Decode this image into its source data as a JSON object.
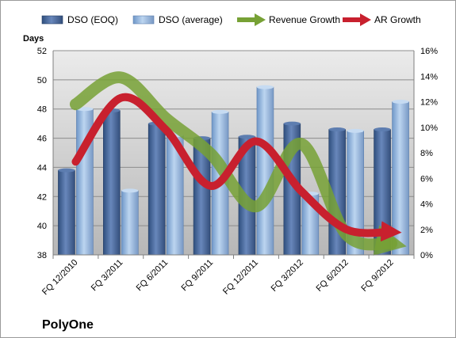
{
  "chart_data": {
    "type": "bar",
    "categories": [
      "FQ 12/2010",
      "FQ 3/2011",
      "FQ 6/2011",
      "FQ 9/2011",
      "FQ 12/2011",
      "FQ 3/2012",
      "FQ 6/2012",
      "FQ 9/2012"
    ],
    "ylabel": "Days",
    "ylim": [
      38,
      52
    ],
    "yticks": [
      38,
      40,
      42,
      44,
      46,
      48,
      50,
      52
    ],
    "y2lim": [
      0,
      16
    ],
    "y2ticks": [
      "0%",
      "2%",
      "4%",
      "6%",
      "8%",
      "10%",
      "12%",
      "14%",
      "16%"
    ],
    "legend_position": "top",
    "grid": true,
    "company": "PolyOne",
    "series": [
      {
        "name": "DSO (EOQ)",
        "kind": "bar",
        "axis": "left",
        "color": "#4f6fa3",
        "values": [
          43.8,
          47.9,
          47.0,
          46.0,
          46.1,
          47.0,
          46.6,
          46.6
        ]
      },
      {
        "name": "DSO (average)",
        "kind": "bar",
        "axis": "left",
        "color": "#9fbee3",
        "values": [
          48.0,
          42.4,
          46.2,
          47.8,
          49.5,
          42.2,
          46.5,
          48.5
        ]
      },
      {
        "name": "Revenue Growth",
        "kind": "line",
        "axis": "right",
        "color": "#77a135",
        "values": [
          11.8,
          13.9,
          10.7,
          7.9,
          3.8,
          8.7,
          1.6,
          0.9
        ]
      },
      {
        "name": "AR Growth",
        "kind": "line",
        "axis": "right",
        "color": "#c8202e",
        "values": [
          7.3,
          12.3,
          9.8,
          5.4,
          8.9,
          5.0,
          2.0,
          1.8
        ]
      }
    ]
  }
}
